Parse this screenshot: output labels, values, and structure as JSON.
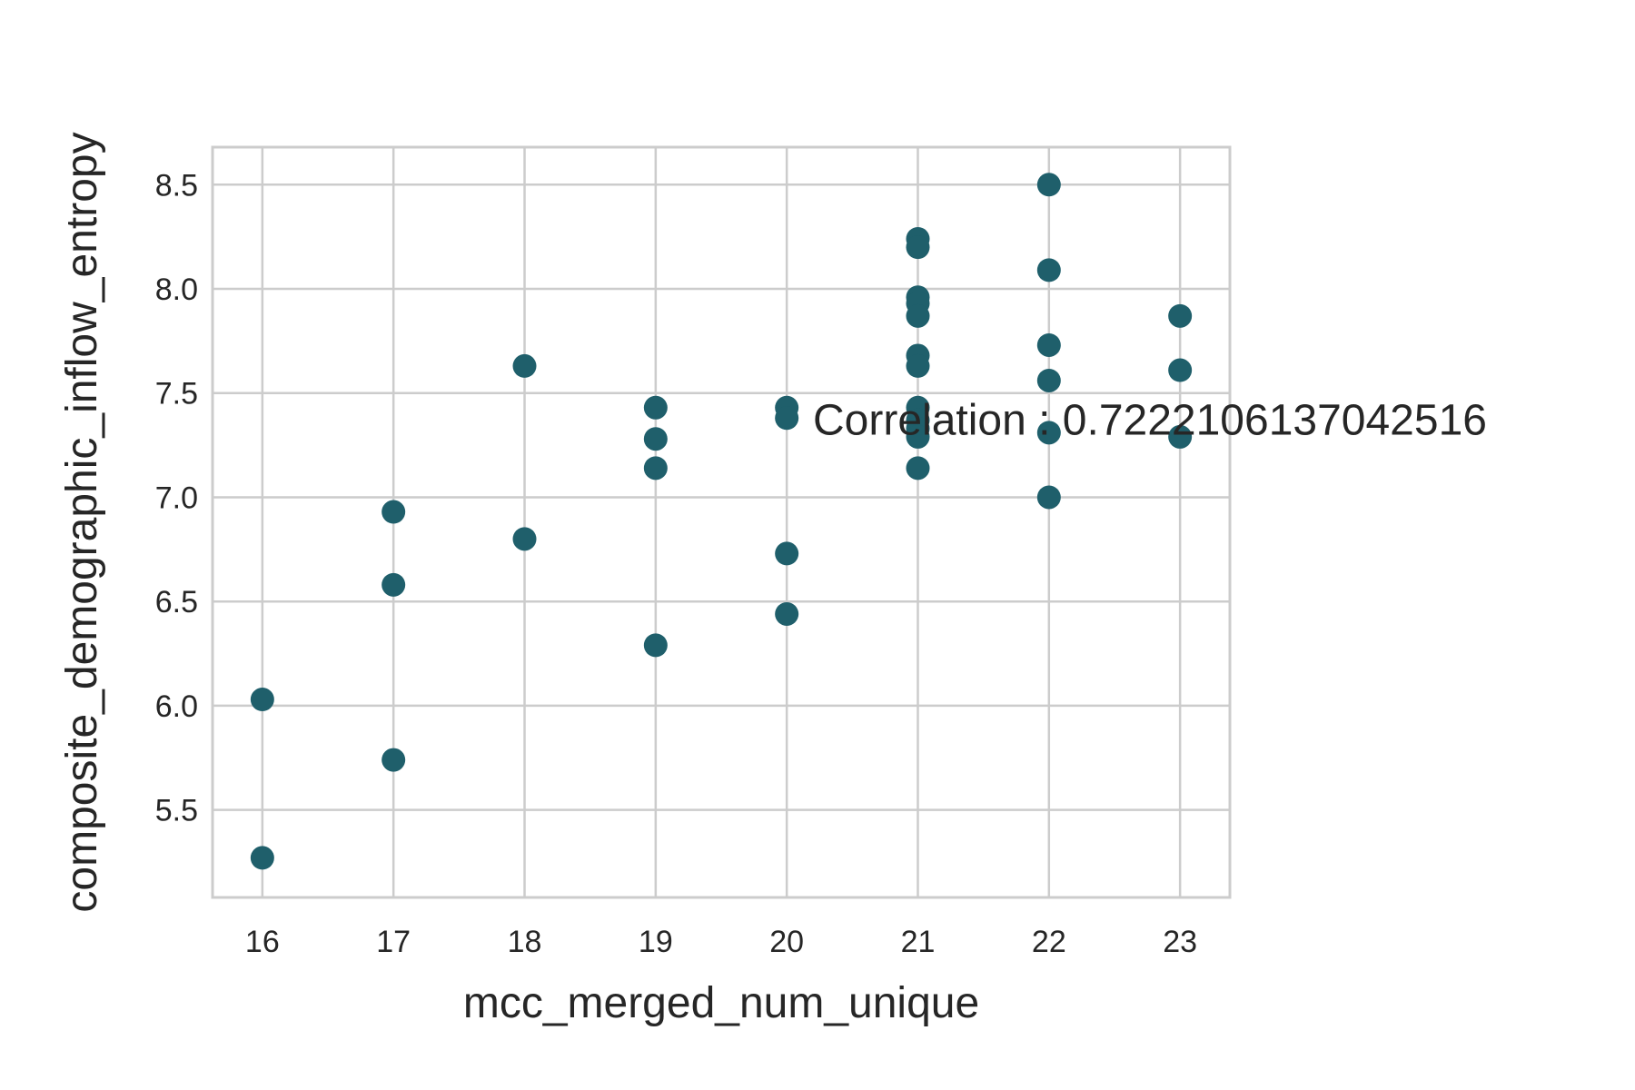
{
  "chart_data": {
    "type": "scatter",
    "xlabel": "mcc_merged_num_unique",
    "ylabel": "composite_demographic_inflow_entropy",
    "xlim": [
      15.62,
      23.38
    ],
    "ylim": [
      5.08,
      8.68
    ],
    "x_ticks": [
      "16",
      "17",
      "18",
      "19",
      "20",
      "21",
      "22",
      "23"
    ],
    "x_tick_values": [
      16,
      17,
      18,
      19,
      20,
      21,
      22,
      23
    ],
    "y_ticks": [
      "5.5",
      "6.0",
      "6.5",
      "7.0",
      "7.5",
      "8.0",
      "8.5"
    ],
    "y_tick_values": [
      5.5,
      6.0,
      6.5,
      7.0,
      7.5,
      8.0,
      8.5
    ],
    "grid": true,
    "point_color": "#1f5f6b",
    "grid_color": "#cccccc",
    "annotation": "Correlation : 0.7222106137042516",
    "annotation_at": [
      20.2,
      7.37
    ],
    "points": [
      [
        16,
        6.03
      ],
      [
        16,
        5.27
      ],
      [
        17,
        6.93
      ],
      [
        17,
        6.58
      ],
      [
        17,
        5.74
      ],
      [
        18,
        7.63
      ],
      [
        18,
        6.8
      ],
      [
        19,
        7.43
      ],
      [
        19,
        7.28
      ],
      [
        19,
        7.14
      ],
      [
        19,
        6.29
      ],
      [
        20,
        7.43
      ],
      [
        20,
        7.38
      ],
      [
        20,
        6.73
      ],
      [
        20,
        6.44
      ],
      [
        21,
        8.24
      ],
      [
        21,
        8.2
      ],
      [
        21,
        7.96
      ],
      [
        21,
        7.93
      ],
      [
        21,
        7.87
      ],
      [
        21,
        7.68
      ],
      [
        21,
        7.63
      ],
      [
        21,
        7.43
      ],
      [
        21,
        7.37
      ],
      [
        21,
        7.33
      ],
      [
        21,
        7.29
      ],
      [
        21,
        7.14
      ],
      [
        22,
        8.5
      ],
      [
        22,
        8.09
      ],
      [
        22,
        7.73
      ],
      [
        22,
        7.56
      ],
      [
        22,
        7.31
      ],
      [
        22,
        7.0
      ],
      [
        23,
        7.87
      ],
      [
        23,
        7.61
      ],
      [
        23,
        7.29
      ]
    ]
  }
}
